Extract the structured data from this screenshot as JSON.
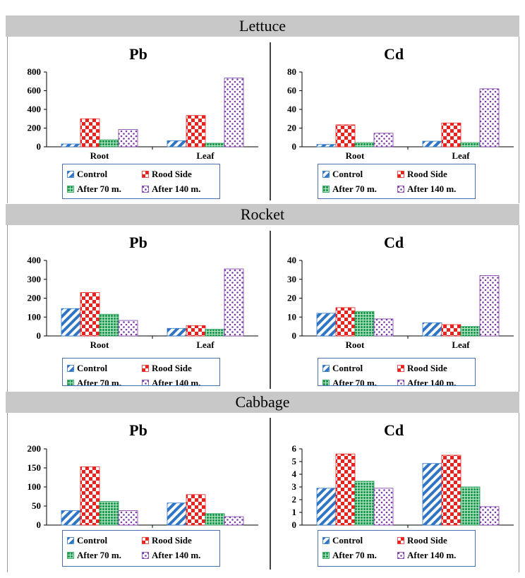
{
  "legend": {
    "items": [
      {
        "label": "Control",
        "pattern": "control"
      },
      {
        "label": "Rood Side",
        "pattern": "road"
      },
      {
        "label": "After 70 m.",
        "pattern": "m70"
      },
      {
        "label": "After 140 m.",
        "pattern": "m140"
      }
    ]
  },
  "colors": {
    "control": "#2e75c5",
    "road": "#e8231f",
    "m70": "#1f9e53",
    "m140": "#7b3aa6",
    "band": "#c8c8c8",
    "legend_border": "#4a6fb0"
  },
  "sections": [
    {
      "title": "Lettuce",
      "charts": [
        {
          "title": "Pb",
          "ylim": [
            0,
            800
          ],
          "yticks": [
            "0",
            "200",
            "400",
            "600",
            "800"
          ]
        },
        {
          "title": "Cd",
          "ylim": [
            0,
            80
          ],
          "yticks": [
            "0",
            "20",
            "40",
            "60",
            "80"
          ]
        }
      ]
    },
    {
      "title": "Rocket",
      "charts": [
        {
          "title": "Pb",
          "ylim": [
            0,
            400
          ],
          "yticks": [
            "0",
            "100",
            "200",
            "300",
            "400"
          ]
        },
        {
          "title": "Cd",
          "ylim": [
            0,
            40
          ],
          "yticks": [
            "0",
            "10",
            "20",
            "30",
            "40"
          ]
        }
      ]
    },
    {
      "title": "Cabbage",
      "charts": [
        {
          "title": "Pb",
          "ylim": [
            0,
            200
          ],
          "yticks": [
            "0",
            "50",
            "100",
            "150",
            "200"
          ]
        },
        {
          "title": "Cd",
          "ylim": [
            0,
            6
          ],
          "yticks": [
            "0",
            "1",
            "2",
            "3",
            "4",
            "5",
            "6"
          ]
        }
      ]
    }
  ],
  "chart_data": [
    {
      "type": "bar",
      "title": "Pb",
      "categories": [
        "Root",
        "Leaf"
      ],
      "ylim": [
        0,
        800
      ],
      "series": [
        {
          "name": "Control",
          "values": [
            30,
            65
          ]
        },
        {
          "name": "Rood Side",
          "values": [
            300,
            335
          ]
        },
        {
          "name": "After 70 m.",
          "values": [
            75,
            38
          ]
        },
        {
          "name": "After 140 m.",
          "values": [
            185,
            735
          ]
        }
      ]
    },
    {
      "type": "bar",
      "title": "Cd",
      "categories": [
        "Root",
        "Leaf"
      ],
      "ylim": [
        0,
        80
      ],
      "series": [
        {
          "name": "Control",
          "values": [
            2.5,
            6
          ]
        },
        {
          "name": "Rood Side",
          "values": [
            23.5,
            25.5
          ]
        },
        {
          "name": "After 70 m.",
          "values": [
            4.5,
            4.5
          ]
        },
        {
          "name": "After 140 m.",
          "values": [
            14.5,
            62
          ]
        }
      ]
    },
    {
      "type": "bar",
      "title": "Pb",
      "categories": [
        "Root",
        "Leaf"
      ],
      "ylim": [
        0,
        400
      ],
      "series": [
        {
          "name": "Control",
          "values": [
            145,
            40
          ]
        },
        {
          "name": "Rood Side",
          "values": [
            230,
            55
          ]
        },
        {
          "name": "After 70 m.",
          "values": [
            115,
            35
          ]
        },
        {
          "name": "After 140 m.",
          "values": [
            82,
            355
          ]
        }
      ]
    },
    {
      "type": "bar",
      "title": "Cd",
      "categories": [
        "Root",
        "Leaf"
      ],
      "ylim": [
        0,
        40
      ],
      "series": [
        {
          "name": "Control",
          "values": [
            12,
            7
          ]
        },
        {
          "name": "Rood Side",
          "values": [
            15,
            6
          ]
        },
        {
          "name": "After 70 m.",
          "values": [
            13,
            5
          ]
        },
        {
          "name": "After 140 m.",
          "values": [
            9,
            32
          ]
        }
      ]
    },
    {
      "type": "bar",
      "title": "Pb",
      "categories": [
        "Root",
        "Leaf"
      ],
      "ylim": [
        0,
        200
      ],
      "series": [
        {
          "name": "Control",
          "values": [
            38,
            58
          ]
        },
        {
          "name": "Rood Side",
          "values": [
            153,
            80
          ]
        },
        {
          "name": "After 70 m.",
          "values": [
            62,
            30
          ]
        },
        {
          "name": "After 140 m.",
          "values": [
            38,
            22
          ]
        }
      ]
    },
    {
      "type": "bar",
      "title": "Cd",
      "categories": [
        "Root",
        "Leaf"
      ],
      "ylim": [
        0,
        6
      ],
      "series": [
        {
          "name": "Control",
          "values": [
            2.9,
            4.85
          ]
        },
        {
          "name": "Rood Side",
          "values": [
            5.6,
            5.5
          ]
        },
        {
          "name": "After 70 m.",
          "values": [
            3.45,
            3.0
          ]
        },
        {
          "name": "After 140 m.",
          "values": [
            2.9,
            1.45
          ]
        }
      ]
    }
  ]
}
